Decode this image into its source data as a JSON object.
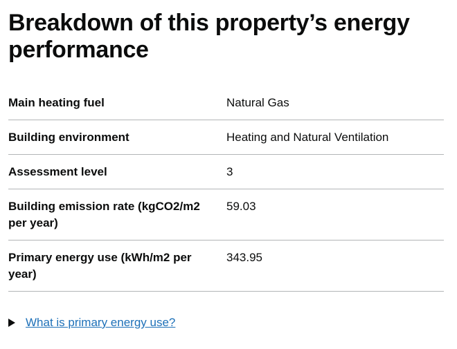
{
  "heading": "Breakdown of this property’s energy performance",
  "rows": [
    {
      "label": "Main heating fuel",
      "value": "Natural Gas"
    },
    {
      "label": "Building environment",
      "value": "Heating and Natural Ventilation"
    },
    {
      "label": "Assessment level",
      "value": "3"
    },
    {
      "label": "Building emission rate (kgCO2/m2 per year)",
      "value": "59.03"
    },
    {
      "label": "Primary energy use (kWh/m2 per year)",
      "value": "343.95"
    }
  ],
  "details": {
    "summary": "What is primary energy use?",
    "icon": "triangle-right-icon"
  }
}
